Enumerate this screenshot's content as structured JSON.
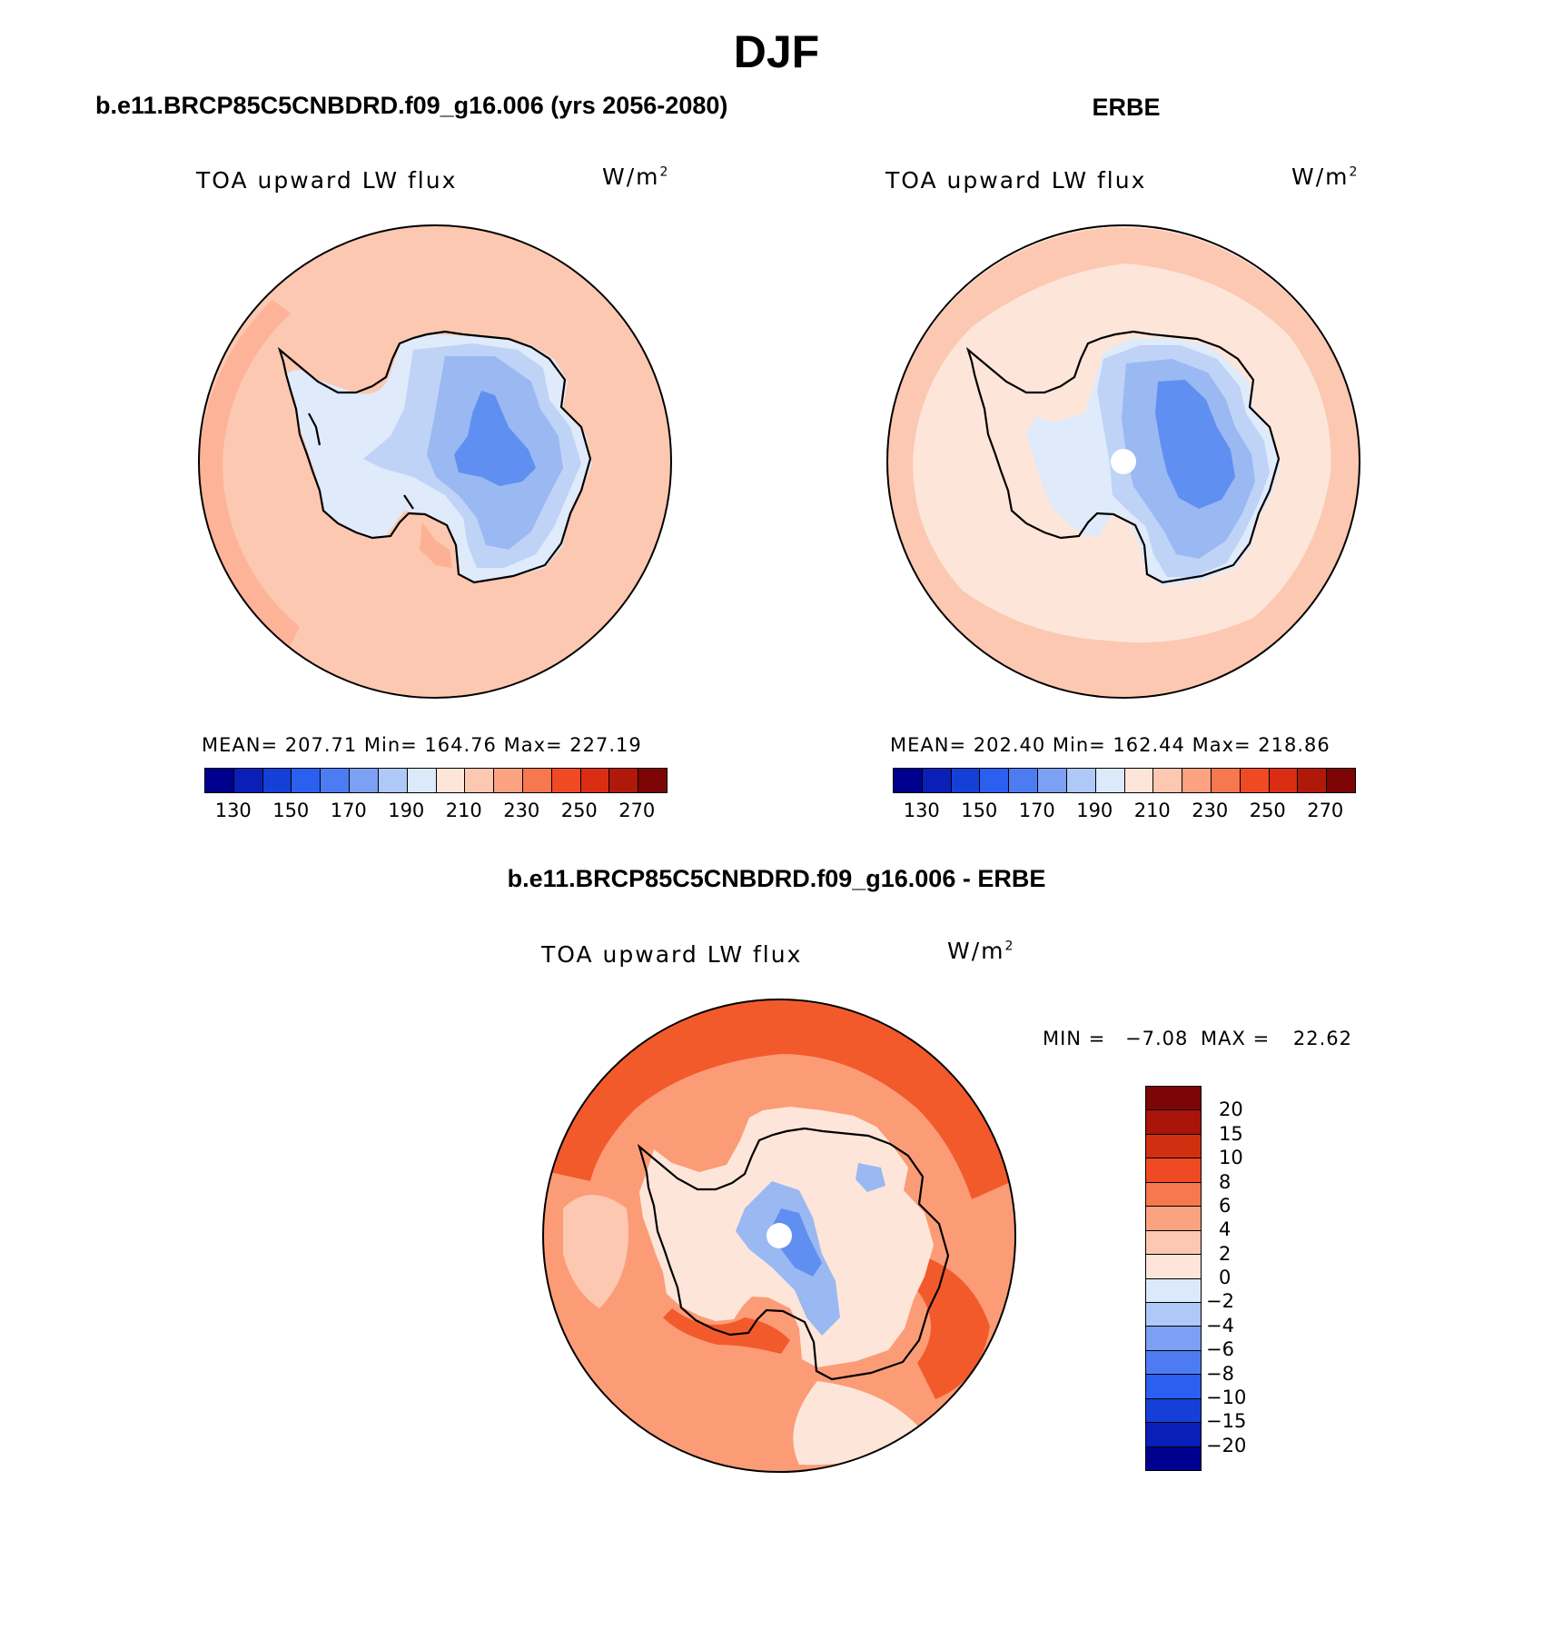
{
  "figure": {
    "title": "DJF",
    "panel_left_title": "b.e11.BRCP85C5CNBDRD.f09_g16.006 (yrs 2056-2080)",
    "panel_right_title": "ERBE",
    "panel_diff_title": "b.e11.BRCP85C5CNBDRD.f09_g16.006 - ERBE"
  },
  "maps": {
    "left": {
      "variable": "TOA upward LW flux",
      "units": "W/m",
      "units_exp": "2",
      "stats": "MEAN= 207.71   Min= 164.76   Max= 227.19",
      "fields": {
        "ocean": "#fcc8b1",
        "land": "#dfeafb",
        "inner1": "#bfd3f7",
        "inner2": "#9ab8f2",
        "core": "#5f8ff0"
      }
    },
    "right": {
      "variable": "TOA upward LW flux",
      "units": "W/m",
      "units_exp": "2",
      "stats": "MEAN= 202.40   Min= 162.44   Max= 218.86",
      "fields": {
        "ocean": "#fde6d9",
        "land": "#dfeafb",
        "inner1": "#bfd3f7",
        "inner2": "#9ab8f2",
        "core": "#5f8ff0"
      }
    },
    "diff": {
      "variable": "TOA upward LW flux",
      "units": "W/m",
      "units_exp": "2",
      "min_label": "MIN =",
      "min_value": "−7.08",
      "max_label": "MAX =",
      "max_value": "22.62",
      "fields": {
        "ocean": "#fb9c77",
        "land": "#fde6d9",
        "blue": "#9ab8f2",
        "deep": "#5f8ff0",
        "hot": "#f25a2c"
      }
    }
  },
  "colorbar_main": {
    "colors": [
      "#00008f",
      "#0a1fb8",
      "#1440d8",
      "#2a5ff0",
      "#4d7cf2",
      "#7ba0f4",
      "#aec8f7",
      "#dbe9fb",
      "#fde6d9",
      "#fcc8b1",
      "#fba281",
      "#f7774f",
      "#f04a24",
      "#d92e12",
      "#b0190a",
      "#7d0505"
    ],
    "ticks": [
      "130",
      "150",
      "170",
      "190",
      "210",
      "230",
      "250",
      "270"
    ]
  },
  "colorbar_diff": {
    "colors": [
      "#7d0505",
      "#a8130a",
      "#d13010",
      "#f04a24",
      "#f7774f",
      "#fba281",
      "#fcc8b1",
      "#fde6d9",
      "#dbe9fb",
      "#aec8f7",
      "#7ba0f4",
      "#4d7cf2",
      "#2a5ff0",
      "#1440d8",
      "#0a1fb8",
      "#00008f"
    ],
    "ticks": [
      "20",
      "15",
      "10",
      "8",
      "6",
      "4",
      "2",
      "0",
      "−2",
      "−4",
      "−6",
      "−8",
      "−10",
      "−15",
      "−20"
    ]
  }
}
